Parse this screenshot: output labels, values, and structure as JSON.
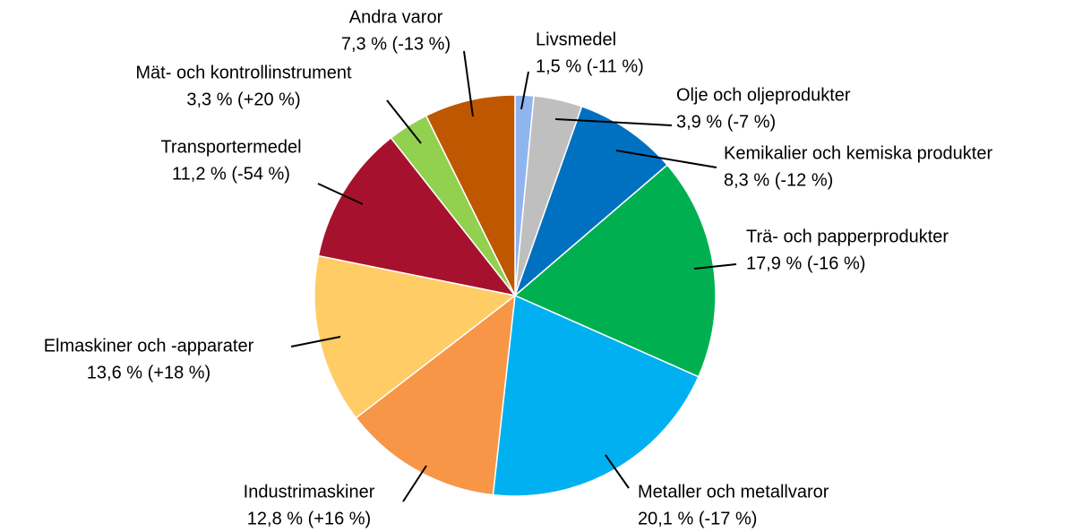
{
  "chart_data": {
    "type": "pie",
    "categories": [
      "Livsmedel",
      "Olje och oljeprodukter",
      "Kemikalier och kemiska produkter",
      "Trä- och papperprodukter",
      "Metaller och metallvaror",
      "Industrimaskiner",
      "Elmaskiner och -apparater",
      "Transportermedel",
      "Mät- och kontrollinstrument",
      "Andra varor"
    ],
    "values": [
      1.5,
      3.9,
      8.3,
      17.9,
      20.1,
      12.8,
      13.6,
      11.2,
      3.3,
      7.3
    ],
    "value_labels": [
      "1,5 % (-11 %)",
      "3,9 % (-7 %)",
      "8,3 % (-12 %)",
      "17,9 % (-16 %)",
      "20,1 % (-17 %)",
      "12,8 % (+16 %)",
      "13,6 % (+18 %)",
      "11,2 % (-54 %)",
      "3,3 % (+20 %)",
      "7,3 % (-13 %)"
    ],
    "colors": [
      "#8fb4f0",
      "#bfbfbf",
      "#0070c0",
      "#00b050",
      "#00b0f0",
      "#f79646",
      "#ffcc66",
      "#a6122d",
      "#92d050",
      "#bf5700"
    ]
  }
}
